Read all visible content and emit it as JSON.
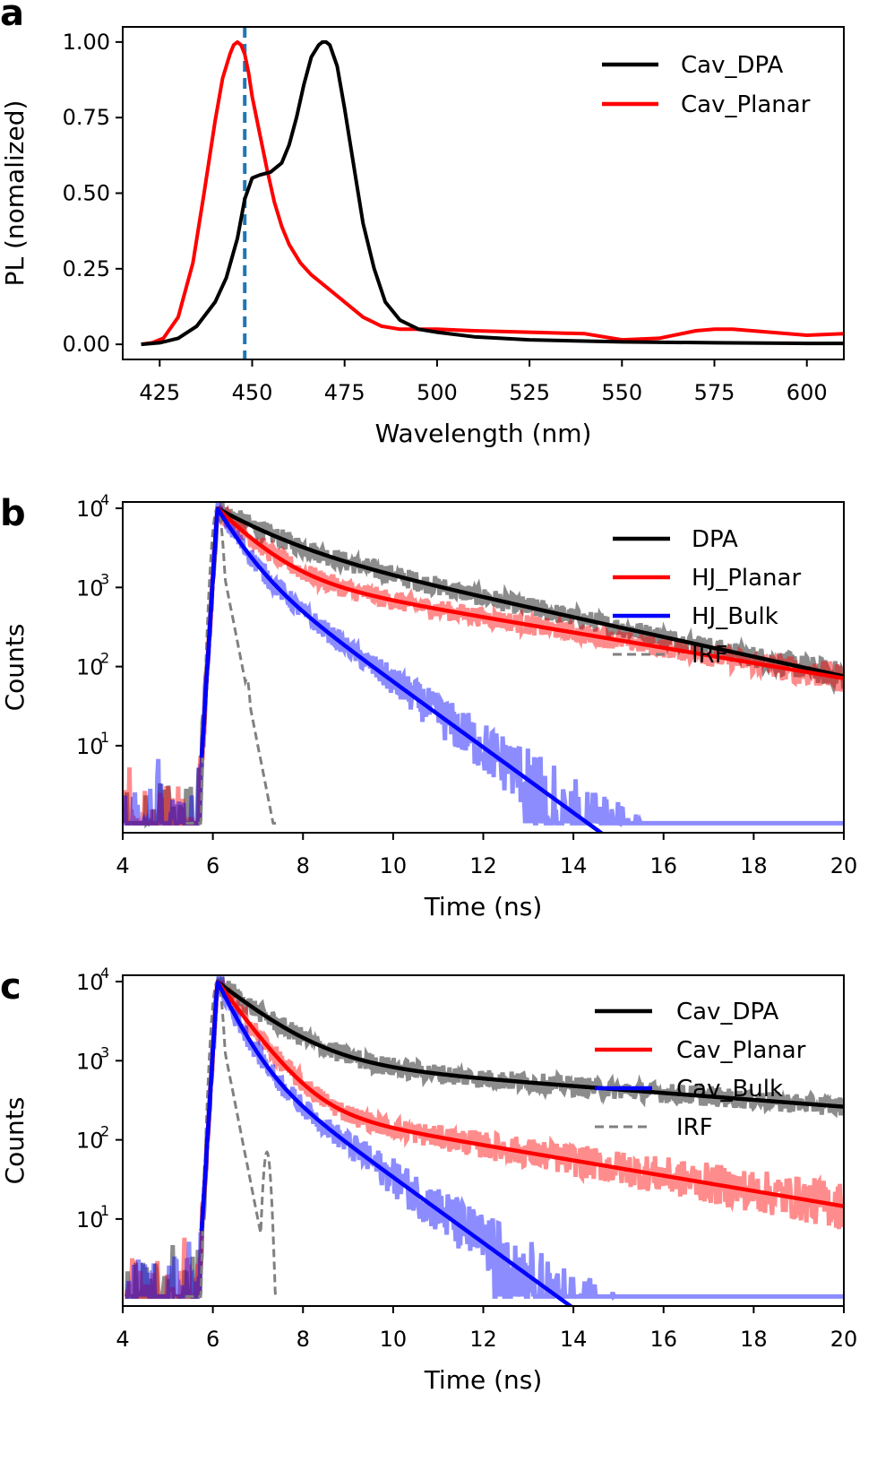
{
  "chart_data": [
    {
      "panel": "a",
      "type": "line",
      "xlabel": "Wavelength (nm)",
      "ylabel": "PL (nomalized)",
      "xlim": [
        415,
        610
      ],
      "ylim": [
        -0.05,
        1.05
      ],
      "xticks": [
        425,
        450,
        475,
        500,
        525,
        550,
        575,
        600
      ],
      "xtick_labels": [
        "425",
        "450",
        "475",
        "500",
        "525",
        "550",
        "575",
        "600"
      ],
      "yticks": [
        0.0,
        0.25,
        0.5,
        0.75,
        1.0
      ],
      "ytick_labels": [
        "0.00",
        "0.25",
        "0.50",
        "0.75",
        "1.00"
      ],
      "legend_position": "top-right",
      "vline": {
        "x": 448,
        "color": "#1f77b4",
        "style": "dashed"
      },
      "series": [
        {
          "name": "Cav_DPA",
          "color": "#000000",
          "x": [
            420,
            425,
            430,
            435,
            440,
            443,
            446,
            448,
            450,
            452,
            455,
            458,
            460,
            462,
            464,
            466,
            468,
            469,
            470,
            471,
            473,
            475,
            478,
            480,
            483,
            486,
            490,
            495,
            500,
            510,
            525,
            550,
            575,
            600,
            610
          ],
          "y": [
            0.0,
            0.005,
            0.02,
            0.06,
            0.14,
            0.22,
            0.35,
            0.48,
            0.55,
            0.56,
            0.57,
            0.6,
            0.66,
            0.75,
            0.86,
            0.95,
            0.99,
            1.0,
            1.0,
            0.99,
            0.92,
            0.78,
            0.55,
            0.4,
            0.25,
            0.14,
            0.08,
            0.05,
            0.04,
            0.025,
            0.015,
            0.008,
            0.005,
            0.003,
            0.003
          ]
        },
        {
          "name": "Cav_Planar",
          "color": "#ff0000",
          "x": [
            420,
            423,
            426,
            430,
            434,
            437,
            440,
            442,
            444,
            445,
            446,
            447,
            448,
            449,
            450,
            452,
            454,
            456,
            458,
            460,
            463,
            466,
            470,
            475,
            480,
            485,
            490,
            500,
            510,
            525,
            540,
            550,
            560,
            570,
            575,
            580,
            590,
            600,
            610
          ],
          "y": [
            0.0,
            0.005,
            0.02,
            0.09,
            0.27,
            0.5,
            0.74,
            0.88,
            0.96,
            0.99,
            1.0,
            0.99,
            0.96,
            0.9,
            0.82,
            0.7,
            0.58,
            0.47,
            0.39,
            0.33,
            0.27,
            0.23,
            0.19,
            0.14,
            0.09,
            0.06,
            0.05,
            0.05,
            0.045,
            0.04,
            0.035,
            0.015,
            0.02,
            0.045,
            0.05,
            0.05,
            0.04,
            0.03,
            0.035
          ]
        }
      ]
    },
    {
      "panel": "b",
      "type": "line",
      "scale": "log",
      "xlabel": "Time (ns)",
      "ylabel": "Counts",
      "xlim": [
        4,
        20
      ],
      "ylim_log10": [
        -0.1,
        4.08
      ],
      "xticks": [
        4,
        6,
        8,
        10,
        12,
        14,
        16,
        18,
        20
      ],
      "xtick_labels": [
        "4",
        "6",
        "8",
        "10",
        "12",
        "14",
        "16",
        "18",
        "20"
      ],
      "ytick_bases": [
        "10",
        "10",
        "10",
        "10"
      ],
      "ytick_exponents": [
        "4",
        "3",
        "2",
        "1"
      ],
      "ytick_log10": [
        4,
        3,
        2,
        1
      ],
      "legend_position": "top-right",
      "peak_time": 6.1,
      "peak_counts": 10000,
      "series": [
        {
          "name": "DPA",
          "color": "#000000",
          "style": "solid",
          "decay_times_ns": [
            1.0,
            3.5
          ],
          "decay_amplitudes": [
            0.6,
            0.4
          ]
        },
        {
          "name": "HJ_Planar",
          "color": "#ff0000",
          "style": "solid",
          "decay_times_ns": [
            0.7,
            4.5
          ],
          "decay_amplitudes": [
            0.65,
            0.12
          ]
        },
        {
          "name": "HJ_Bulk",
          "color": "#0000ff",
          "style": "solid",
          "decay_times_ns": [
            0.4,
            1.05
          ],
          "decay_amplitudes": [
            0.7,
            0.25
          ]
        },
        {
          "name": "IRF",
          "color": "#808080",
          "style": "dashed",
          "decay_times_ns": [
            0.15
          ],
          "decay_amplitudes": [
            1.0
          ]
        }
      ]
    },
    {
      "panel": "c",
      "type": "line",
      "scale": "log",
      "xlabel": "Time (ns)",
      "ylabel": "Counts",
      "xlim": [
        4,
        20
      ],
      "ylim_log10": [
        -0.1,
        4.08
      ],
      "xticks": [
        4,
        6,
        8,
        10,
        12,
        14,
        16,
        18,
        20
      ],
      "xtick_labels": [
        "4",
        "6",
        "8",
        "10",
        "12",
        "14",
        "16",
        "18",
        "20"
      ],
      "ytick_bases": [
        "10",
        "10",
        "10",
        "10"
      ],
      "ytick_exponents": [
        "4",
        "3",
        "2",
        "1"
      ],
      "ytick_log10": [
        4,
        3,
        2,
        1
      ],
      "legend_position": "top-right",
      "peak_time": 6.1,
      "peak_counts": 10000,
      "series": [
        {
          "name": "Cav_DPA",
          "color": "#000000",
          "style": "solid",
          "decay_times_ns": [
            0.9,
            10.0
          ],
          "decay_amplitudes": [
            0.85,
            0.1
          ]
        },
        {
          "name": "Cav_Planar",
          "color": "#ff0000",
          "style": "solid",
          "decay_times_ns": [
            0.55,
            4.5
          ],
          "decay_amplitudes": [
            0.7,
            0.023
          ]
        },
        {
          "name": "Cav_Bulk",
          "color": "#0000ff",
          "style": "solid",
          "decay_times_ns": [
            0.35,
            1.05
          ],
          "decay_amplitudes": [
            0.75,
            0.12
          ]
        },
        {
          "name": "IRF",
          "color": "#808080",
          "style": "dashed",
          "decay_times_ns": [
            0.15
          ],
          "decay_amplitudes": [
            1.0
          ]
        }
      ]
    }
  ]
}
